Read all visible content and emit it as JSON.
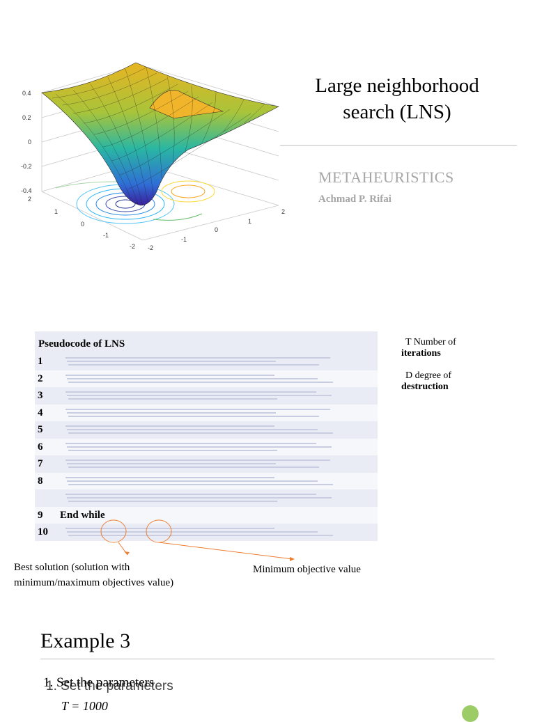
{
  "slide1": {
    "title_line1": "Large neighborhood",
    "title_line2": "search (LNS)",
    "subtitle": "METAHEURISTICS",
    "author": "Achmad P. Rifai",
    "plot": {
      "z_ticks": [
        "0.4",
        "0.2",
        "0",
        "-0.2",
        "-0.4"
      ],
      "y_ticks": [
        "2",
        "1",
        "0",
        "-1",
        "-2"
      ],
      "x_ticks": [
        "-2",
        "-1",
        "0",
        "1",
        "2"
      ]
    }
  },
  "slide2": {
    "table_title": "Pseudocode of LNS",
    "rows": [
      {
        "num": "1",
        "code": ""
      },
      {
        "num": "2",
        "code": ""
      },
      {
        "num": "3",
        "code": ""
      },
      {
        "num": "4",
        "code": ""
      },
      {
        "num": "5",
        "code": ""
      },
      {
        "num": "6",
        "code": ""
      },
      {
        "num": "7",
        "code": ""
      },
      {
        "num": "8",
        "code": ""
      },
      {
        "num": "",
        "code": ""
      },
      {
        "num": "9",
        "code": "End while"
      },
      {
        "num": "10",
        "code": ""
      }
    ],
    "side_note1_a": "T Number of",
    "side_note1_b": "iterations",
    "side_note2_a": "D degree of",
    "side_note2_b": "destruction",
    "best_solution_line1": "Best solution (solution with",
    "best_solution_line2": "minimum/maximum objectives value)",
    "min_objective": "Minimum objective value",
    "arrow_color": "#ed7d31"
  },
  "slide3": {
    "heading": "Example 3",
    "step1": "1. Set the parameters",
    "param_T": "T = 1000"
  }
}
